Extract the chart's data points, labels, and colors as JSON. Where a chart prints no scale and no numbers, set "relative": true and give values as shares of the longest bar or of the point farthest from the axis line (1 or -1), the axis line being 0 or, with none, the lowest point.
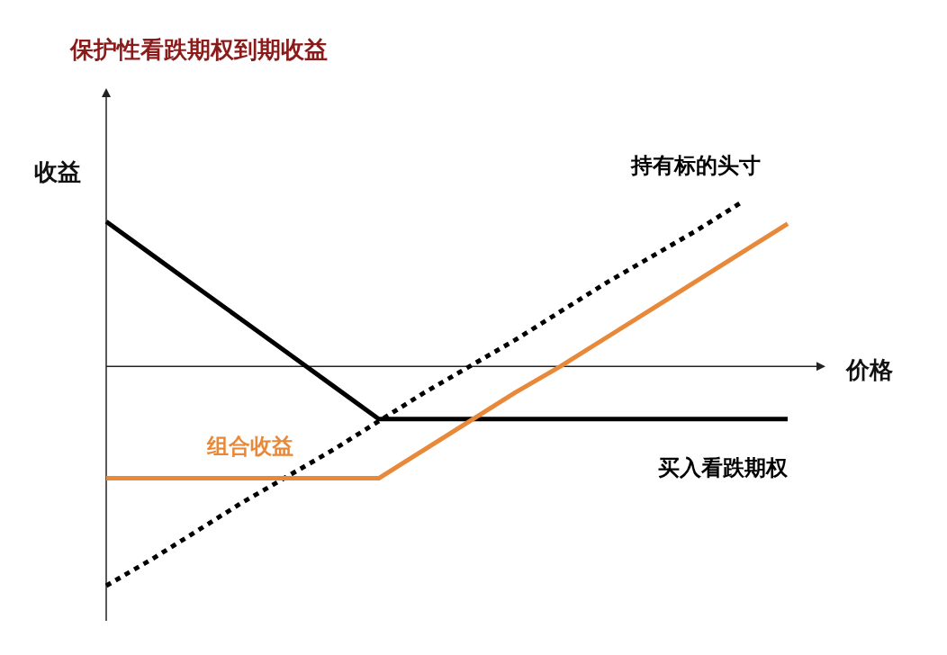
{
  "chart_data": {
    "type": "line",
    "title": "保护性看跌期权到期收益",
    "xlabel": "价格",
    "ylabel": "收益",
    "relative": true,
    "legend": false,
    "grid": false,
    "marker": "none",
    "categories": [
      null,
      null,
      null,
      null,
      null,
      null,
      null,
      null,
      null,
      null,
      null,
      null,
      null,
      null,
      null,
      null
    ],
    "series": [
      {
        "name": "买入看跌期权",
        "color": "#000000",
        "line_style": "solid",
        "values": [
          0.66,
          0.51,
          0.36,
          0.21,
          0.06,
          -0.09,
          -0.24,
          -0.24,
          -0.24,
          -0.24,
          -0.24,
          -0.24,
          -0.24,
          -0.24,
          -0.24,
          -0.24
        ]
      },
      {
        "name": "持有标的头寸",
        "color": "#000000",
        "line_style": "dotted",
        "values": [
          -1,
          -0.88,
          -0.75,
          -0.62,
          -0.5,
          -0.38,
          -0.25,
          -0.12,
          0,
          0.12,
          0.25,
          0.38,
          0.5,
          0.62,
          0.75,
          null
        ]
      },
      {
        "name": "组合收益",
        "color": "#e8893a",
        "line_style": "solid",
        "values": [
          -0.51,
          -0.51,
          -0.51,
          -0.51,
          -0.51,
          -0.51,
          -0.51,
          -0.38,
          -0.25,
          -0.12,
          0,
          0.13,
          0.26,
          0.39,
          0.52,
          0.65
        ]
      }
    ]
  }
}
